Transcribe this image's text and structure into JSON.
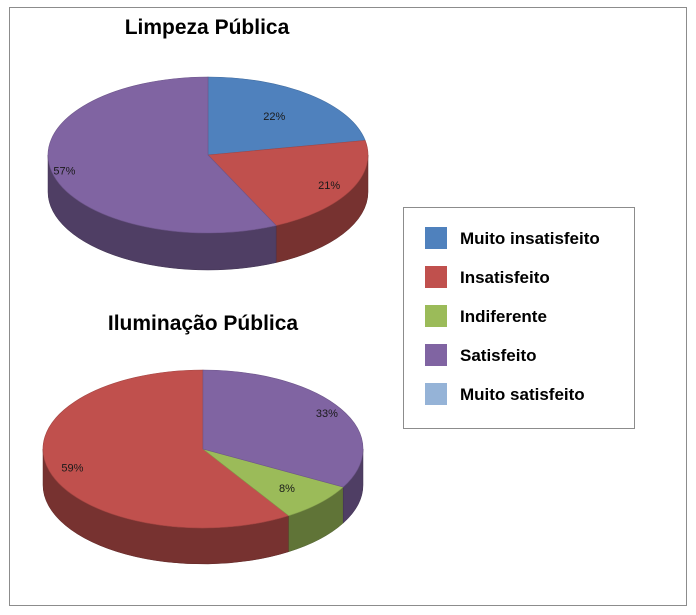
{
  "legend": {
    "placement": "right",
    "entries": [
      {
        "label": "Muito insatisfeito",
        "color": "#4F81BD"
      },
      {
        "label": "Insatisfeito",
        "color": "#C0504D"
      },
      {
        "label": "Indiferente",
        "color": "#9BBB59"
      },
      {
        "label": "Satisfeito",
        "color": "#8064A2"
      },
      {
        "label": "Muito satisfeito",
        "color": "#95B3D7"
      }
    ]
  },
  "chart_data": [
    {
      "type": "pie",
      "style": "3d",
      "title": "Limpeza Pública",
      "slices": [
        {
          "category": "Muito insatisfeito",
          "value": 22,
          "label": "22%",
          "color": "#4F81BD"
        },
        {
          "category": "Insatisfeito",
          "value": 21,
          "label": "21%",
          "color": "#C0504D"
        },
        {
          "category": "Satisfeito",
          "value": 57,
          "label": "57%",
          "color": "#8064A2"
        }
      ]
    },
    {
      "type": "pie",
      "style": "3d",
      "title": "Iluminação Pública",
      "slices": [
        {
          "category": "Insatisfeito",
          "value": 59,
          "label": "59%",
          "color": "#C0504D"
        },
        {
          "category": "Indiferente",
          "value": 8,
          "label": "8%",
          "color": "#9BBB59"
        },
        {
          "category": "Satisfeito",
          "value": 33,
          "label": "33%",
          "color": "#8064A2"
        }
      ]
    }
  ]
}
